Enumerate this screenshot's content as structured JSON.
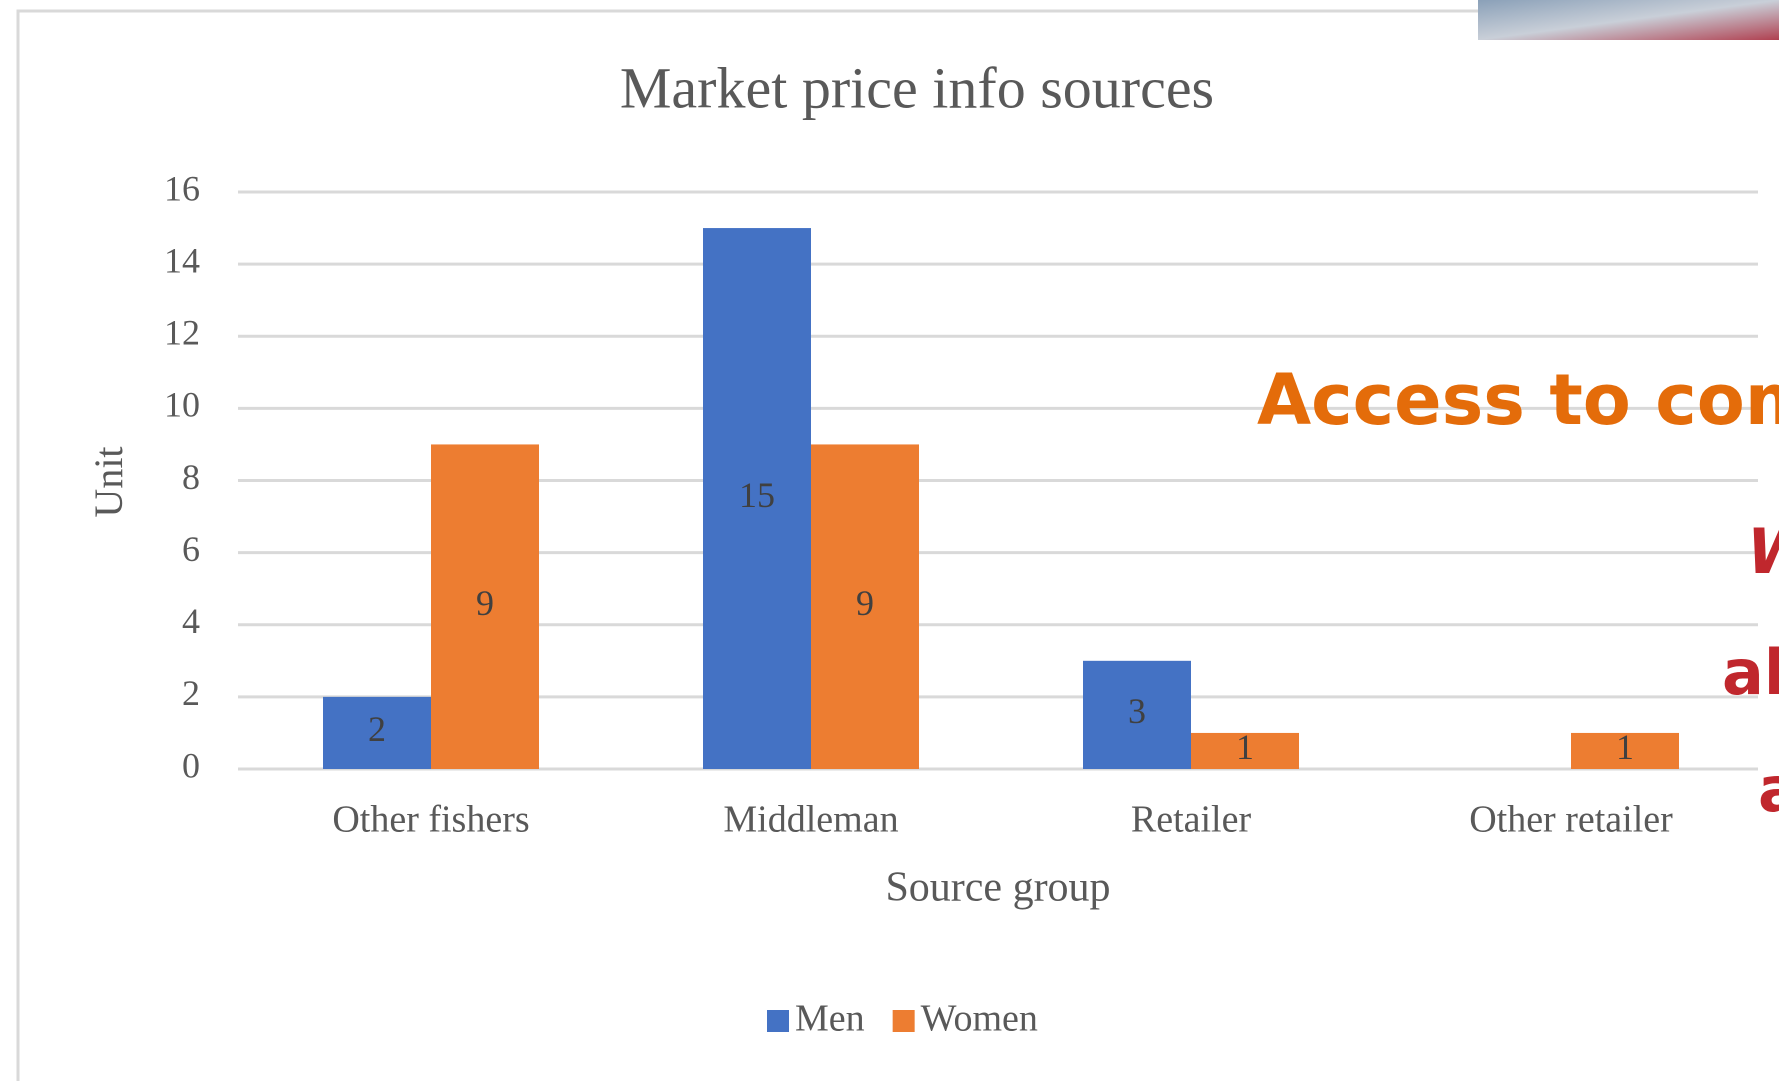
{
  "chart_data": {
    "type": "bar",
    "title": "Market price info sources",
    "x_label": "Source group",
    "y_label": "Unit",
    "categories": [
      "Other fishers",
      "Middleman",
      "Retailer",
      "Other retailer"
    ],
    "series": [
      {
        "name": "Men",
        "color": "#4472c4",
        "values": [
          2,
          15,
          3,
          null
        ]
      },
      {
        "name": "Women",
        "color": "#ed7d31",
        "values": [
          9,
          9,
          1,
          1
        ]
      }
    ],
    "ylim": [
      0,
      16
    ],
    "yticks": [
      0,
      2,
      4,
      6,
      8,
      10,
      12,
      14,
      16
    ],
    "grid": true,
    "legend": "bottom",
    "annotations": [
      "Access to com",
      "W",
      "al",
      "a"
    ]
  }
}
